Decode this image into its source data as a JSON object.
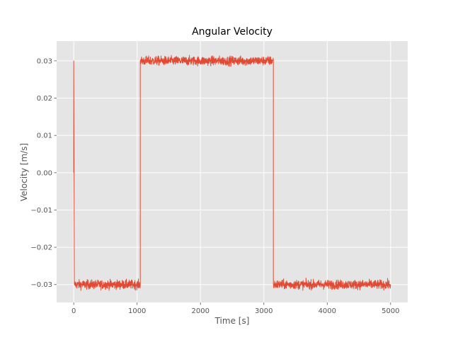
{
  "chart_data": {
    "type": "line",
    "title": "Angular Velocity",
    "xlabel": "Time [s]",
    "ylabel": "Velocity [m/s]",
    "xlim": [
      -270,
      5270
    ],
    "ylim": [
      -0.0348,
      0.0353
    ],
    "xticks": [
      0,
      1000,
      2000,
      3000,
      4000,
      5000
    ],
    "yticks": [
      -0.03,
      -0.02,
      -0.01,
      0.0,
      0.01,
      0.02,
      0.03
    ],
    "xtick_labels": [
      "0",
      "1000",
      "2000",
      "3000",
      "4000",
      "5000"
    ],
    "ytick_labels": [
      "−0.03",
      "−0.02",
      "−0.01",
      "0.00",
      "0.01",
      "0.02",
      "0.03"
    ],
    "grid": true,
    "colors": {
      "series": "#e24a33",
      "background": "#e5e5e5",
      "grid": "#ffffff"
    },
    "series": [
      {
        "x": [
          0,
          0,
          10,
          1050,
          1050,
          3150,
          3150,
          5000
        ],
        "y": [
          0.0,
          0.03,
          -0.03,
          -0.03,
          0.03,
          0.03,
          -0.03,
          -0.03
        ],
        "noise_amplitude": 0.0006
      }
    ]
  }
}
